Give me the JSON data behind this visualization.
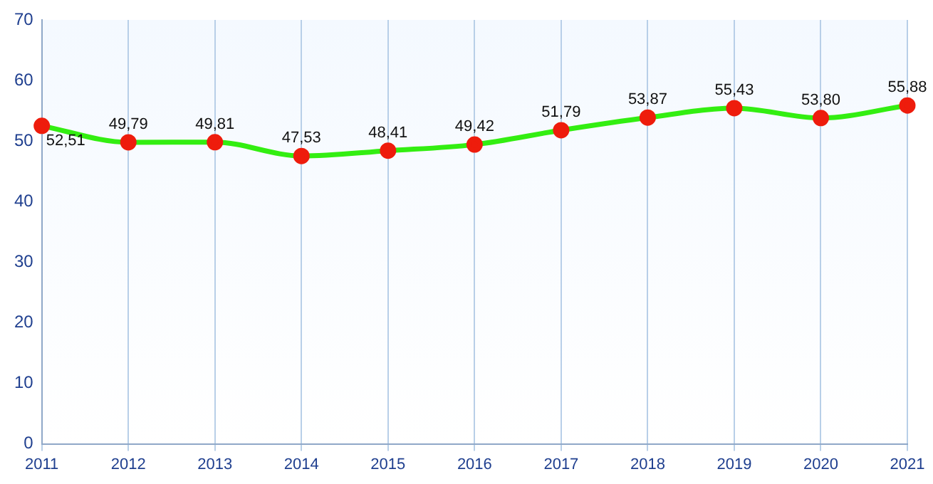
{
  "chart_data": {
    "type": "line",
    "categories": [
      "2011",
      "2012",
      "2013",
      "2014",
      "2015",
      "2016",
      "2017",
      "2018",
      "2019",
      "2020",
      "2021"
    ],
    "series": [
      {
        "color": "#33ee11",
        "values": [
          52.51,
          49.79,
          49.81,
          47.53,
          48.41,
          49.42,
          51.79,
          53.87,
          55.43,
          53.8,
          55.88
        ],
        "value_labels": [
          "52,51",
          "49,79",
          "49,81",
          "47,53",
          "48,41",
          "49,42",
          "51,79",
          "53,87",
          "55,43",
          "53,80",
          "55,88"
        ]
      }
    ],
    "ylim": [
      0,
      70
    ],
    "yticks": [
      0,
      10,
      20,
      30,
      40,
      50,
      60,
      70
    ],
    "grid": "x",
    "marker": "circle",
    "legend": false
  }
}
